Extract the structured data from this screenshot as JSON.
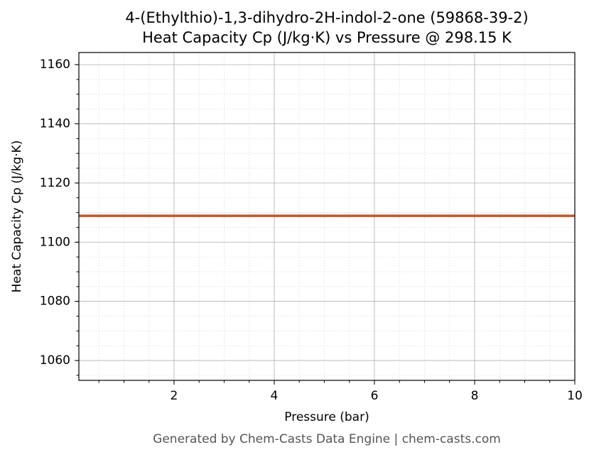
{
  "chart_data": {
    "type": "line",
    "title": "4-(Ethylthio)-1,3-dihydro-2H-indol-2-one (59868-39-2)",
    "subtitle": "Heat Capacity Cp (J/kg·K) vs Pressure @ 298.15 K",
    "x_label": "Pressure (bar)",
    "y_label": "Heat Capacity Cp (J/kg·K)",
    "footer": "Generated by Chem-Casts Data Engine | chem-casts.com",
    "x": [
      0.1,
      10
    ],
    "values": [
      1108.9,
      1108.9
    ],
    "color": "#c8552b",
    "xlim": [
      0.1,
      10
    ],
    "xticks": [
      2,
      4,
      6,
      8,
      10
    ],
    "ylim": [
      1053.3,
      1164.1
    ],
    "yticks": [
      1060,
      1080,
      1100,
      1120,
      1140,
      1160
    ],
    "grid": true
  }
}
